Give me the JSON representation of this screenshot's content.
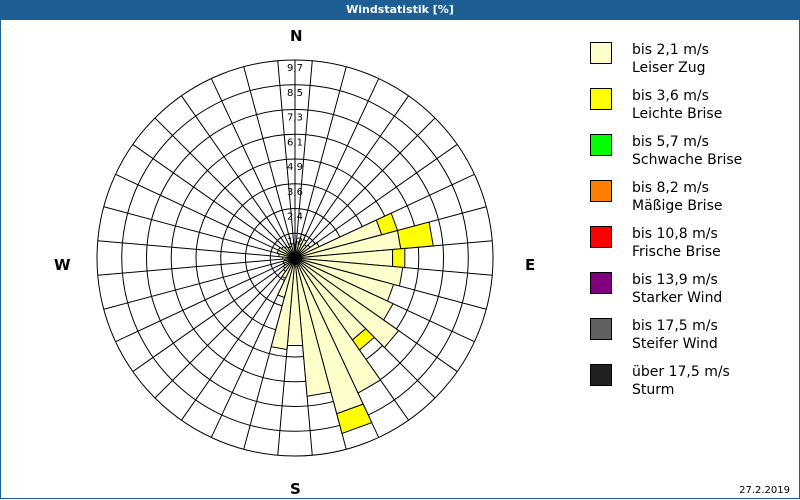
{
  "window": {
    "title": "Windstatistik [%]"
  },
  "compass": {
    "n": "N",
    "e": "E",
    "s": "S",
    "w": "W"
  },
  "footer": {
    "date": "27.2.2019"
  },
  "legend": [
    {
      "range": "bis 2,1 m/s",
      "name": "Leiser Zug",
      "color": "#ffffcc"
    },
    {
      "range": "bis 3,6 m/s",
      "name": "Leichte Brise",
      "color": "#ffff00"
    },
    {
      "range": "bis 5,7 m/s",
      "name": "Schwache Brise",
      "color": "#00ff00"
    },
    {
      "range": "bis 8,2 m/s",
      "name": "Mäßige Brise",
      "color": "#ff8000"
    },
    {
      "range": "bis 10,8 m/s",
      "name": "Frische Brise",
      "color": "#ff0000"
    },
    {
      "range": "bis 13,9 m/s",
      "name": "Starker Wind",
      "color": "#800080"
    },
    {
      "range": "bis 17,5 m/s",
      "name": "Steifer Wind",
      "color": "#606060"
    },
    {
      "range": "über 17,5 m/s",
      "name": "Sturm",
      "color": "#202020"
    }
  ],
  "chart_data": {
    "type": "polar-bar",
    "title": "Windstatistik [%]",
    "ring_labels": [
      "1,2",
      "2,4",
      "3,6",
      "4,9",
      "6,1",
      "7,3",
      "8,5",
      "9,7"
    ],
    "rmax": 9.7,
    "sector_width_deg": 10,
    "directions_deg": [
      0,
      10,
      20,
      30,
      40,
      50,
      60,
      70,
      80,
      90,
      100,
      110,
      120,
      130,
      140,
      150,
      160,
      170,
      180,
      190,
      200,
      210,
      220,
      230,
      240,
      250,
      260,
      270,
      280,
      290,
      300,
      310,
      320,
      330,
      340,
      350
    ],
    "series": [
      {
        "name": "bis 2,1 m/s Leiser Zug",
        "color": "#ffffcc",
        "values": [
          0.5,
          0.8,
          1.2,
          1.0,
          0.8,
          0.9,
          1.3,
          4.4,
          5.2,
          4.8,
          5.3,
          5.0,
          5.3,
          6.2,
          4.9,
          7.3,
          7.9,
          6.8,
          4.3,
          4.5,
          2.0,
          1.1,
          0.8,
          0.7,
          0.6,
          0.6,
          0.5,
          0.6,
          0.8,
          0.9,
          0.9,
          0.8,
          0.7,
          0.6,
          0.6,
          0.7
        ]
      },
      {
        "name": "bis 3,6 m/s Leichte Brise",
        "color": "#ffff00",
        "values": [
          0,
          0,
          0,
          0,
          0,
          0,
          0,
          0.8,
          1.6,
          0.6,
          0,
          0,
          0,
          0,
          0.6,
          0,
          1.0,
          0,
          0,
          0,
          0,
          0,
          0,
          0,
          0,
          0,
          0,
          0,
          0,
          0,
          0,
          0,
          0,
          0,
          0,
          0
        ]
      },
      {
        "name": "bis 5,7 m/s Schwache Brise",
        "color": "#00ff00",
        "values": []
      },
      {
        "name": "bis 8,2 m/s Mäßige Brise",
        "color": "#ff8000",
        "values": []
      },
      {
        "name": "bis 10,8 m/s Frische Brise",
        "color": "#ff0000",
        "values": []
      },
      {
        "name": "bis 13,9 m/s Starker Wind",
        "color": "#800080",
        "values": []
      },
      {
        "name": "bis 17,5 m/s Steifer Wind",
        "color": "#606060",
        "values": []
      },
      {
        "name": "über 17,5 m/s Sturm",
        "color": "#202020",
        "values": []
      }
    ]
  }
}
